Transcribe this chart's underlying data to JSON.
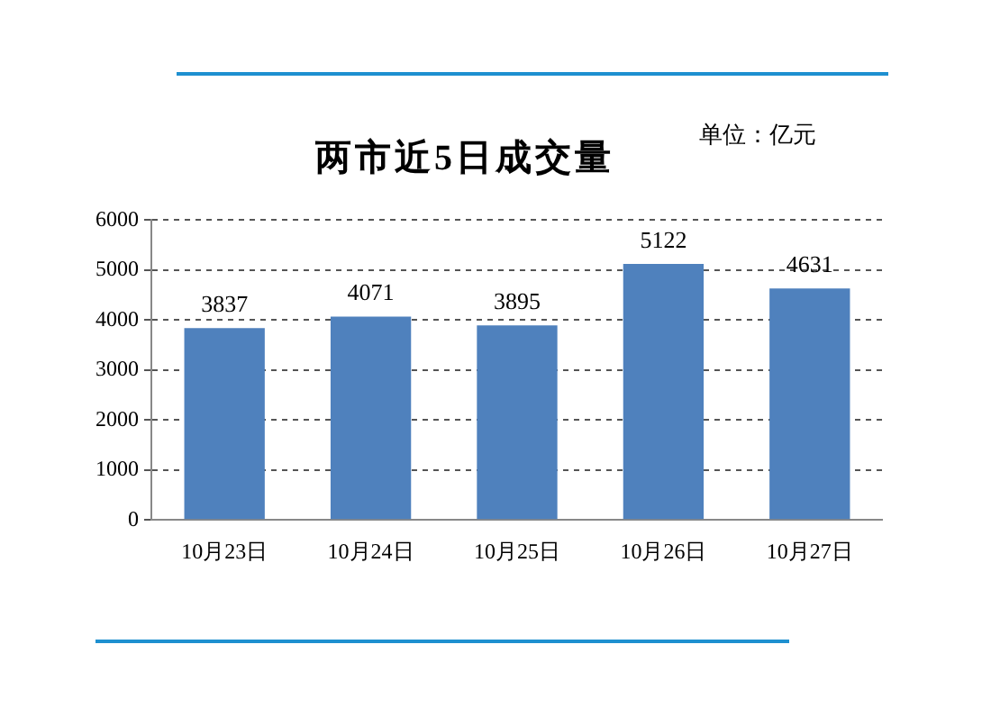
{
  "chart_data": {
    "type": "bar",
    "title": "两市近5日成交量",
    "annotations": [
      "单位：亿元"
    ],
    "categories": [
      "10月23日",
      "10月24日",
      "10月25日",
      "10月26日",
      "10月27日"
    ],
    "values": [
      3837,
      4071,
      3895,
      5122,
      4631
    ],
    "color": "#4f81bd",
    "ylim": [
      0,
      6000
    ],
    "yticks": [
      0,
      1000,
      2000,
      3000,
      4000,
      5000,
      6000
    ],
    "grid": "y",
    "data_labels": true,
    "legend": false
  }
}
